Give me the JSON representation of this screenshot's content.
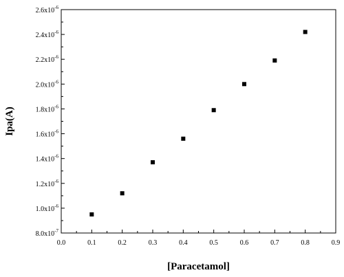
{
  "chart_data": {
    "type": "scatter",
    "title": "",
    "xlabel": "[Paracetamol]",
    "ylabel": "Ipa(A)",
    "xlim": [
      0.0,
      0.9
    ],
    "ylim": [
      8e-07,
      2.6e-06
    ],
    "x_ticks": [
      0.0,
      0.1,
      0.2,
      0.3,
      0.4,
      0.5,
      0.6,
      0.7,
      0.8,
      0.9
    ],
    "x_tick_labels": [
      "0.0",
      "0.1",
      "0.2",
      "0.3",
      "0.4",
      "0.5",
      "0.6",
      "0.7",
      "0.8",
      "0.9"
    ],
    "y_ticks": [
      8e-07,
      1e-06,
      1.2e-06,
      1.4e-06,
      1.6e-06,
      1.8e-06,
      2e-06,
      2.2e-06,
      2.4e-06,
      2.6e-06
    ],
    "y_tick_labels": [
      {
        "mantissa": "8.0x10",
        "exp": "-7"
      },
      {
        "mantissa": "1.0x10",
        "exp": "-6"
      },
      {
        "mantissa": "1.2x10",
        "exp": "-6"
      },
      {
        "mantissa": "1.4x10",
        "exp": "-6"
      },
      {
        "mantissa": "1.6x10",
        "exp": "-6"
      },
      {
        "mantissa": "1.8x10",
        "exp": "-6"
      },
      {
        "mantissa": "2.0x10",
        "exp": "-6"
      },
      {
        "mantissa": "2.2x10",
        "exp": "-6"
      },
      {
        "mantissa": "2.4x10",
        "exp": "-6"
      },
      {
        "mantissa": "2.6x10",
        "exp": "-6"
      }
    ],
    "series": [
      {
        "marker": "square",
        "color": "#000000",
        "x": [
          0.1,
          0.2,
          0.3,
          0.4,
          0.5,
          0.6,
          0.7,
          0.8
        ],
        "y": [
          9.5e-07,
          1.12e-06,
          1.37e-06,
          1.56e-06,
          1.79e-06,
          2e-06,
          2.19e-06,
          2.42e-06
        ]
      }
    ],
    "grid": false,
    "legend": "none"
  }
}
